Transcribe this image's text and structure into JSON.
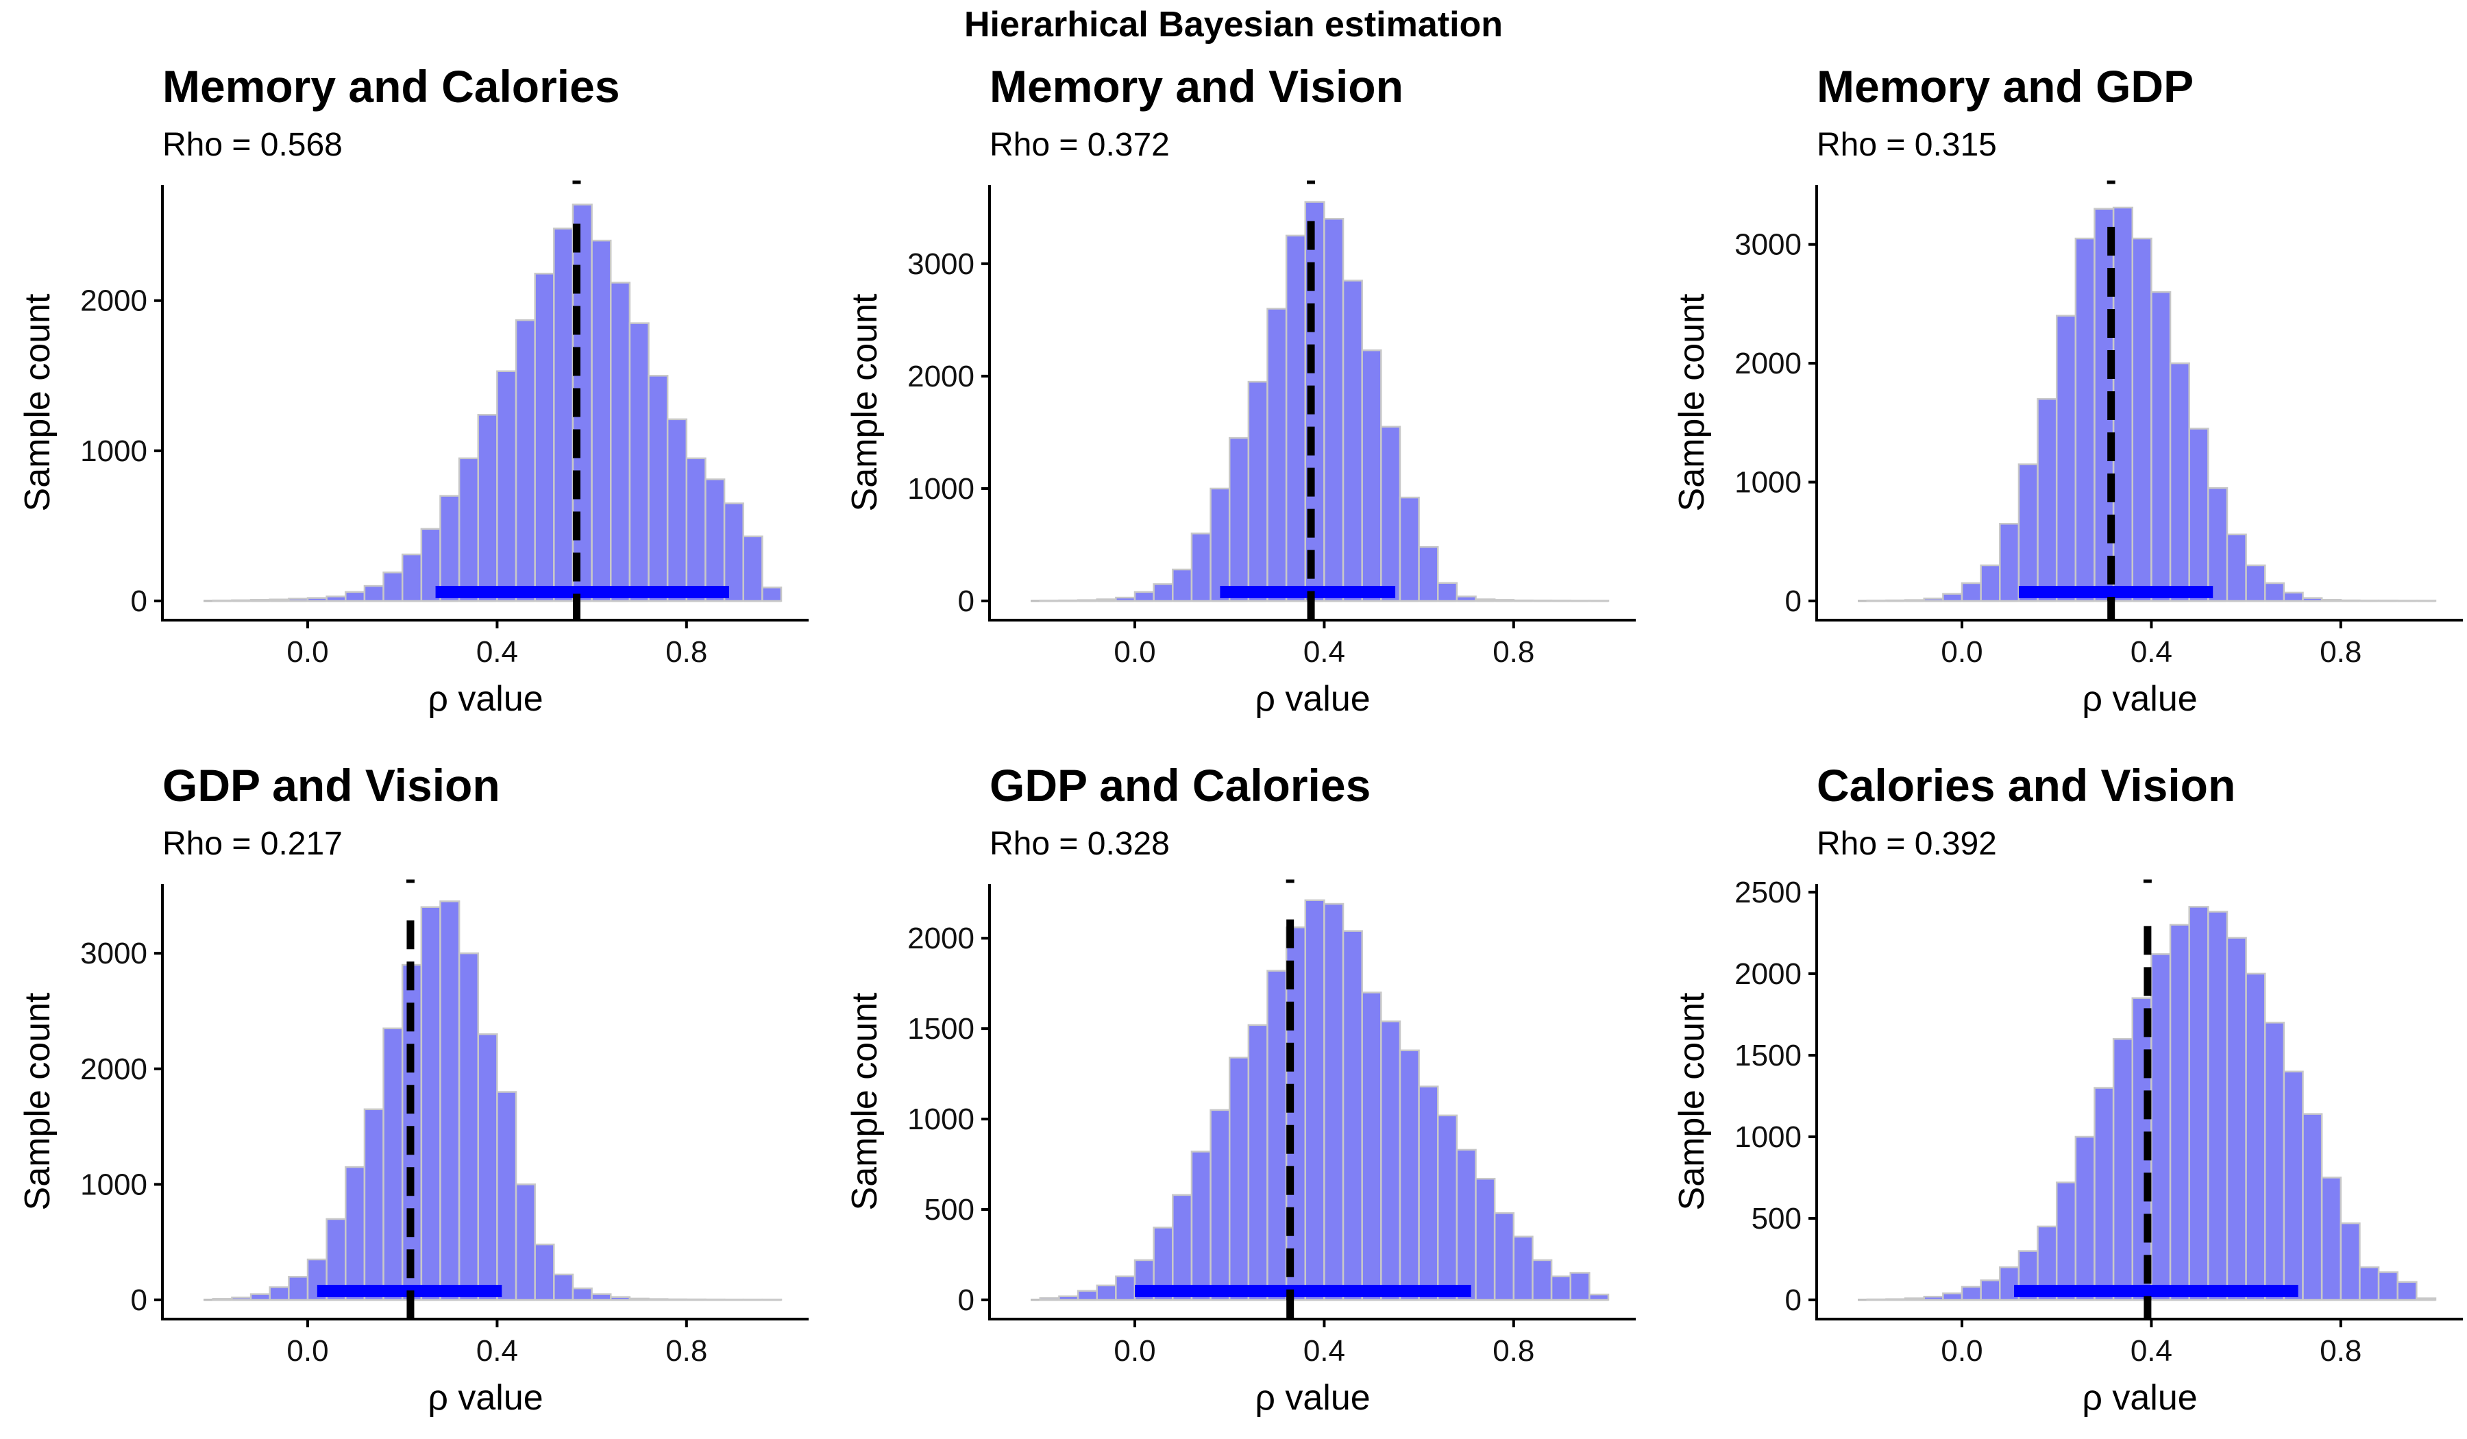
{
  "figure_title": "Hierarhical Bayesian estimation",
  "colors": {
    "bar_fill": "#8080f5",
    "bar_edge": "#c8c8c8",
    "hdi": "#0000ff",
    "mean_line": "#000000",
    "axis": "#000000"
  },
  "chart_data": [
    {
      "type": "bar",
      "title": "Memory and Calories",
      "subtitle": "Rho = 0.568",
      "xlabel": "ρ value",
      "ylabel": "Sample count",
      "xticks": [
        0.0,
        0.4,
        0.8
      ],
      "xtick_labels": [
        "0.0",
        "0.4",
        "0.8"
      ],
      "yticks": [
        0,
        1000,
        2000
      ],
      "yticks_labels": [
        "0",
        "1000",
        "2000"
      ],
      "xlim": [
        -0.22,
        1.0
      ],
      "ylim": [
        0,
        2770
      ],
      "bin_width": 0.04,
      "bin_centers": [
        -0.18,
        -0.14,
        -0.1,
        -0.06,
        -0.02,
        0.02,
        0.06,
        0.1,
        0.14,
        0.18,
        0.22,
        0.26,
        0.3,
        0.34,
        0.38,
        0.42,
        0.46,
        0.5,
        0.54,
        0.58,
        0.62,
        0.66,
        0.7,
        0.74,
        0.78,
        0.82,
        0.86,
        0.9,
        0.94,
        0.98
      ],
      "values": [
        3,
        5,
        8,
        10,
        15,
        20,
        30,
        60,
        100,
        190,
        310,
        480,
        700,
        950,
        1240,
        1530,
        1870,
        2180,
        2480,
        2640,
        2400,
        2120,
        1850,
        1500,
        1210,
        950,
        810,
        650,
        430,
        90
      ],
      "mean": 0.568,
      "hdi": [
        0.27,
        0.89
      ],
      "grid": false,
      "legend": "none"
    },
    {
      "type": "bar",
      "title": "Memory and Vision",
      "subtitle": "Rho = 0.372",
      "xlabel": "ρ value",
      "ylabel": "Sample count",
      "xticks": [
        0.0,
        0.4,
        0.8
      ],
      "xtick_labels": [
        "0.0",
        "0.4",
        "0.8"
      ],
      "yticks": [
        0,
        1000,
        2000,
        3000
      ],
      "yticks_labels": [
        "0",
        "1000",
        "2000",
        "3000"
      ],
      "xlim": [
        -0.22,
        1.0
      ],
      "ylim": [
        0,
        3700
      ],
      "bin_width": 0.04,
      "bin_centers": [
        -0.18,
        -0.14,
        -0.1,
        -0.06,
        -0.02,
        0.02,
        0.06,
        0.1,
        0.14,
        0.18,
        0.22,
        0.26,
        0.3,
        0.34,
        0.38,
        0.42,
        0.46,
        0.5,
        0.54,
        0.58,
        0.62,
        0.66,
        0.7,
        0.74,
        0.78,
        0.82,
        0.86,
        0.9,
        0.94,
        0.98
      ],
      "values": [
        3,
        5,
        8,
        15,
        30,
        80,
        150,
        280,
        600,
        1000,
        1450,
        1950,
        2600,
        3250,
        3550,
        3400,
        2850,
        2230,
        1550,
        920,
        480,
        160,
        40,
        15,
        10,
        5,
        4,
        3,
        2,
        2
      ],
      "mean": 0.372,
      "hdi": [
        0.18,
        0.55
      ],
      "grid": false,
      "legend": "none"
    },
    {
      "type": "bar",
      "title": "Memory and GDP",
      "subtitle": "Rho = 0.315",
      "xlabel": "ρ value",
      "ylabel": "Sample count",
      "xticks": [
        0.0,
        0.4,
        0.8
      ],
      "xtick_labels": [
        "0.0",
        "0.4",
        "0.8"
      ],
      "yticks": [
        0,
        1000,
        2000,
        3000
      ],
      "yticks_labels": [
        "0",
        "1000",
        "2000",
        "3000"
      ],
      "xlim": [
        -0.22,
        1.0
      ],
      "ylim": [
        0,
        3500
      ],
      "bin_width": 0.04,
      "bin_centers": [
        -0.18,
        -0.14,
        -0.1,
        -0.06,
        -0.02,
        0.02,
        0.06,
        0.1,
        0.14,
        0.18,
        0.22,
        0.26,
        0.3,
        0.34,
        0.38,
        0.42,
        0.46,
        0.5,
        0.54,
        0.58,
        0.62,
        0.66,
        0.7,
        0.74,
        0.78,
        0.82,
        0.86,
        0.9,
        0.94,
        0.98
      ],
      "values": [
        3,
        5,
        8,
        20,
        60,
        150,
        300,
        650,
        1150,
        1700,
        2400,
        3050,
        3300,
        3310,
        3050,
        2600,
        2000,
        1450,
        950,
        560,
        300,
        150,
        70,
        25,
        10,
        5,
        3,
        3,
        2,
        2
      ],
      "mean": 0.315,
      "hdi": [
        0.12,
        0.53
      ],
      "grid": false,
      "legend": "none"
    },
    {
      "type": "bar",
      "title": "GDP and Vision",
      "subtitle": "Rho = 0.217",
      "xlabel": "ρ value",
      "ylabel": "Sample count",
      "xticks": [
        0.0,
        0.4,
        0.8
      ],
      "xtick_labels": [
        "0.0",
        "0.4",
        "0.8"
      ],
      "yticks": [
        0,
        1000,
        2000,
        3000
      ],
      "yticks_labels": [
        "0",
        "1000",
        "2000",
        "3000"
      ],
      "xlim": [
        -0.22,
        1.0
      ],
      "ylim": [
        0,
        3600
      ],
      "bin_width": 0.04,
      "bin_centers": [
        -0.18,
        -0.14,
        -0.1,
        -0.06,
        -0.02,
        0.02,
        0.06,
        0.1,
        0.14,
        0.18,
        0.22,
        0.26,
        0.3,
        0.34,
        0.38,
        0.42,
        0.46,
        0.5,
        0.54,
        0.58,
        0.62,
        0.66,
        0.7,
        0.74,
        0.78,
        0.82,
        0.86,
        0.9,
        0.94,
        0.98
      ],
      "values": [
        10,
        20,
        50,
        110,
        200,
        350,
        700,
        1150,
        1650,
        2350,
        2900,
        3400,
        3450,
        3000,
        2300,
        1800,
        1000,
        480,
        220,
        100,
        50,
        25,
        12,
        8,
        5,
        4,
        3,
        2,
        2,
        2
      ],
      "mean": 0.217,
      "hdi": [
        0.02,
        0.41
      ],
      "grid": false,
      "legend": "none"
    },
    {
      "type": "bar",
      "title": "GDP and Calories",
      "subtitle": "Rho = 0.328",
      "xlabel": "ρ value",
      "ylabel": "Sample count",
      "xticks": [
        0.0,
        0.4,
        0.8
      ],
      "xtick_labels": [
        "0.0",
        "0.4",
        "0.8"
      ],
      "yticks": [
        0,
        500,
        1000,
        1500,
        2000
      ],
      "yticks_labels": [
        "0",
        "500",
        "1000",
        "1500",
        "2000"
      ],
      "xlim": [
        -0.22,
        1.0
      ],
      "ylim": [
        0,
        2300
      ],
      "bin_width": 0.04,
      "bin_centers": [
        -0.18,
        -0.14,
        -0.1,
        -0.06,
        -0.02,
        0.02,
        0.06,
        0.1,
        0.14,
        0.18,
        0.22,
        0.26,
        0.3,
        0.34,
        0.38,
        0.42,
        0.46,
        0.5,
        0.54,
        0.58,
        0.62,
        0.66,
        0.7,
        0.74,
        0.78,
        0.82,
        0.86,
        0.9,
        0.94,
        0.98
      ],
      "values": [
        10,
        20,
        50,
        80,
        130,
        220,
        400,
        580,
        820,
        1050,
        1340,
        1520,
        1820,
        2060,
        2210,
        2190,
        2040,
        1700,
        1540,
        1380,
        1180,
        1020,
        830,
        670,
        480,
        350,
        220,
        130,
        150,
        30
      ],
      "mean": 0.328,
      "hdi": [
        0.0,
        0.71
      ],
      "grid": false,
      "legend": "none"
    },
    {
      "type": "bar",
      "title": "Calories and Vision",
      "subtitle": "Rho = 0.392",
      "xlabel": "ρ value",
      "ylabel": "Sample count",
      "xticks": [
        0.0,
        0.4,
        0.8
      ],
      "xtick_labels": [
        "0.0",
        "0.4",
        "0.8"
      ],
      "yticks": [
        0,
        500,
        1000,
        1500,
        2000,
        2500
      ],
      "yticks_labels": [
        "0",
        "500",
        "1000",
        "1500",
        "2000",
        "2500"
      ],
      "xlim": [
        -0.22,
        1.0
      ],
      "ylim": [
        0,
        2550
      ],
      "bin_width": 0.04,
      "bin_centers": [
        -0.18,
        -0.14,
        -0.1,
        -0.06,
        -0.02,
        0.02,
        0.06,
        0.1,
        0.14,
        0.18,
        0.22,
        0.26,
        0.3,
        0.34,
        0.38,
        0.42,
        0.46,
        0.5,
        0.54,
        0.58,
        0.62,
        0.66,
        0.7,
        0.74,
        0.78,
        0.82,
        0.86,
        0.9,
        0.94,
        0.98
      ],
      "values": [
        3,
        5,
        10,
        20,
        40,
        80,
        120,
        200,
        300,
        450,
        720,
        1000,
        1300,
        1600,
        1850,
        2120,
        2300,
        2410,
        2380,
        2220,
        2000,
        1700,
        1400,
        1140,
        750,
        470,
        200,
        170,
        110,
        10
      ],
      "mean": 0.392,
      "hdi": [
        0.11,
        0.71
      ],
      "grid": false,
      "legend": "none"
    }
  ]
}
